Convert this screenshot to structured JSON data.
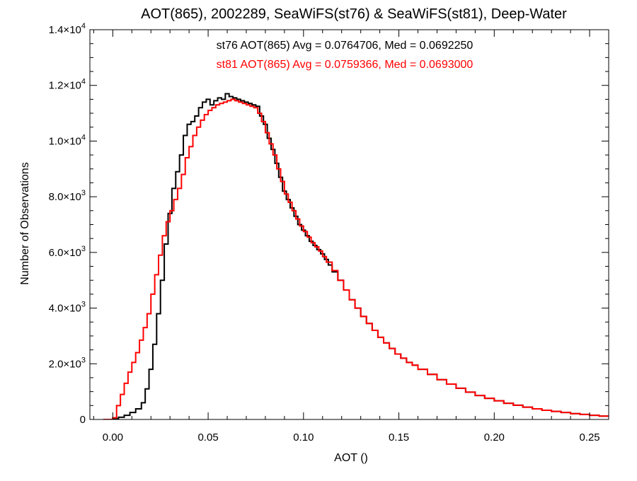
{
  "chart_data": {
    "type": "line",
    "title": "AOT(865), 2002289, SeaWiFS(st76) & SeaWiFS(st81), Deep-Water",
    "xlabel": "AOT ()",
    "ylabel": "Number of Observations",
    "xlim": [
      -0.012,
      0.26
    ],
    "ylim": [
      0,
      14000
    ],
    "x_ticks": [
      0.0,
      0.05,
      0.1,
      0.15,
      0.2,
      0.25
    ],
    "x_tick_labels": [
      "0.00",
      "0.05",
      "0.10",
      "0.15",
      "0.20",
      "0.25"
    ],
    "y_ticks": [
      {
        "value": 0,
        "mantissa": "0",
        "exp": ""
      },
      {
        "value": 2000,
        "mantissa": "2.0×10",
        "exp": "3"
      },
      {
        "value": 4000,
        "mantissa": "4.0×10",
        "exp": "3"
      },
      {
        "value": 6000,
        "mantissa": "6.0×10",
        "exp": "3"
      },
      {
        "value": 8000,
        "mantissa": "8.0×10",
        "exp": "3"
      },
      {
        "value": 10000,
        "mantissa": "1.0×10",
        "exp": "4"
      },
      {
        "value": 12000,
        "mantissa": "1.2×10",
        "exp": "4"
      },
      {
        "value": 14000,
        "mantissa": "1.4×10",
        "exp": "4"
      }
    ],
    "grid": false,
    "step": true,
    "annotations": [
      {
        "text": "st76 AOT(865) Avg = 0.0764706, Med = 0.0692250",
        "color": "#000000"
      },
      {
        "text": "st81 AOT(865) Avg = 0.0759366, Med = 0.0693000",
        "color": "#ff0000"
      }
    ],
    "series": [
      {
        "color": "#000000",
        "points": [
          [
            -0.005,
            0
          ],
          [
            0.0,
            20
          ],
          [
            0.003,
            80
          ],
          [
            0.006,
            150
          ],
          [
            0.009,
            250
          ],
          [
            0.012,
            380
          ],
          [
            0.015,
            600
          ],
          [
            0.017,
            1100
          ],
          [
            0.019,
            1800
          ],
          [
            0.021,
            2700
          ],
          [
            0.023,
            3800
          ],
          [
            0.025,
            5000
          ],
          [
            0.027,
            6300
          ],
          [
            0.029,
            7400
          ],
          [
            0.031,
            8300
          ],
          [
            0.033,
            8900
          ],
          [
            0.035,
            9500
          ],
          [
            0.037,
            10200
          ],
          [
            0.039,
            10600
          ],
          [
            0.041,
            10700
          ],
          [
            0.043,
            10900
          ],
          [
            0.045,
            11200
          ],
          [
            0.047,
            11400
          ],
          [
            0.049,
            11500
          ],
          [
            0.051,
            11300
          ],
          [
            0.053,
            11450
          ],
          [
            0.055,
            11550
          ],
          [
            0.057,
            11500
          ],
          [
            0.059,
            11700
          ],
          [
            0.061,
            11600
          ],
          [
            0.063,
            11550
          ],
          [
            0.065,
            11500
          ],
          [
            0.067,
            11450
          ],
          [
            0.069,
            11400
          ],
          [
            0.071,
            11350
          ],
          [
            0.073,
            11300
          ],
          [
            0.075,
            11250
          ],
          [
            0.077,
            10900
          ],
          [
            0.079,
            10600
          ],
          [
            0.081,
            10100
          ],
          [
            0.083,
            9700
          ],
          [
            0.085,
            9200
          ],
          [
            0.087,
            8700
          ],
          [
            0.089,
            8200
          ],
          [
            0.091,
            7900
          ],
          [
            0.093,
            7600
          ],
          [
            0.095,
            7300
          ],
          [
            0.097,
            7000
          ],
          [
            0.099,
            6800
          ],
          [
            0.101,
            6600
          ],
          [
            0.103,
            6400
          ],
          [
            0.105,
            6250
          ],
          [
            0.107,
            6100
          ],
          [
            0.109,
            5950
          ],
          [
            0.111,
            5750
          ],
          [
            0.113,
            5550
          ],
          [
            0.115,
            5300
          ],
          [
            0.118,
            5000
          ],
          [
            0.121,
            4650
          ],
          [
            0.124,
            4300
          ],
          [
            0.127,
            4000
          ],
          [
            0.13,
            3700
          ],
          [
            0.133,
            3450
          ],
          [
            0.136,
            3200
          ],
          [
            0.139,
            2950
          ],
          [
            0.142,
            2750
          ],
          [
            0.145,
            2550
          ],
          [
            0.148,
            2350
          ],
          [
            0.151,
            2200
          ],
          [
            0.154,
            2050
          ],
          [
            0.157,
            1950
          ],
          [
            0.16,
            1800
          ],
          [
            0.165,
            1620
          ],
          [
            0.17,
            1430
          ],
          [
            0.175,
            1270
          ],
          [
            0.18,
            1120
          ],
          [
            0.185,
            980
          ],
          [
            0.19,
            860
          ],
          [
            0.195,
            760
          ],
          [
            0.2,
            670
          ],
          [
            0.205,
            580
          ],
          [
            0.21,
            510
          ],
          [
            0.215,
            440
          ],
          [
            0.22,
            380
          ],
          [
            0.225,
            330
          ],
          [
            0.23,
            290
          ],
          [
            0.235,
            250
          ],
          [
            0.24,
            210
          ],
          [
            0.245,
            180
          ],
          [
            0.25,
            150
          ],
          [
            0.255,
            120
          ],
          [
            0.26,
            90
          ]
        ]
      },
      {
        "color": "#ff0000",
        "points": [
          [
            -0.005,
            0
          ],
          [
            0.0,
            60
          ],
          [
            0.002,
            500
          ],
          [
            0.004,
            900
          ],
          [
            0.006,
            1300
          ],
          [
            0.008,
            1700
          ],
          [
            0.01,
            2050
          ],
          [
            0.012,
            2400
          ],
          [
            0.014,
            2850
          ],
          [
            0.016,
            3300
          ],
          [
            0.018,
            3800
          ],
          [
            0.02,
            4500
          ],
          [
            0.022,
            5200
          ],
          [
            0.024,
            5900
          ],
          [
            0.026,
            6600
          ],
          [
            0.028,
            7100
          ],
          [
            0.03,
            7500
          ],
          [
            0.032,
            7900
          ],
          [
            0.034,
            8300
          ],
          [
            0.036,
            8800
          ],
          [
            0.038,
            9400
          ],
          [
            0.04,
            9800
          ],
          [
            0.042,
            10200
          ],
          [
            0.044,
            10500
          ],
          [
            0.046,
            10750
          ],
          [
            0.048,
            10950
          ],
          [
            0.05,
            11100
          ],
          [
            0.052,
            11200
          ],
          [
            0.054,
            11300
          ],
          [
            0.056,
            11350
          ],
          [
            0.058,
            11400
          ],
          [
            0.06,
            11450
          ],
          [
            0.062,
            11500
          ],
          [
            0.064,
            11450
          ],
          [
            0.066,
            11400
          ],
          [
            0.068,
            11350
          ],
          [
            0.07,
            11300
          ],
          [
            0.072,
            11250
          ],
          [
            0.074,
            11200
          ],
          [
            0.076,
            11000
          ],
          [
            0.078,
            10700
          ],
          [
            0.08,
            10300
          ],
          [
            0.082,
            9900
          ],
          [
            0.084,
            9500
          ],
          [
            0.086,
            9000
          ],
          [
            0.088,
            8550
          ],
          [
            0.09,
            8100
          ],
          [
            0.092,
            7800
          ],
          [
            0.094,
            7500
          ],
          [
            0.096,
            7200
          ],
          [
            0.098,
            6950
          ],
          [
            0.1,
            6750
          ],
          [
            0.102,
            6550
          ],
          [
            0.104,
            6350
          ],
          [
            0.106,
            6200
          ],
          [
            0.108,
            6050
          ],
          [
            0.11,
            5850
          ],
          [
            0.112,
            5650
          ],
          [
            0.115,
            5350
          ],
          [
            0.118,
            5000
          ],
          [
            0.121,
            4650
          ],
          [
            0.124,
            4300
          ],
          [
            0.127,
            4000
          ],
          [
            0.13,
            3700
          ],
          [
            0.133,
            3450
          ],
          [
            0.136,
            3200
          ],
          [
            0.139,
            2950
          ],
          [
            0.142,
            2750
          ],
          [
            0.145,
            2550
          ],
          [
            0.148,
            2350
          ],
          [
            0.151,
            2200
          ],
          [
            0.154,
            2050
          ],
          [
            0.157,
            1950
          ],
          [
            0.16,
            1800
          ],
          [
            0.165,
            1620
          ],
          [
            0.17,
            1430
          ],
          [
            0.175,
            1270
          ],
          [
            0.18,
            1120
          ],
          [
            0.185,
            980
          ],
          [
            0.19,
            860
          ],
          [
            0.195,
            760
          ],
          [
            0.2,
            670
          ],
          [
            0.205,
            580
          ],
          [
            0.21,
            510
          ],
          [
            0.215,
            440
          ],
          [
            0.22,
            380
          ],
          [
            0.225,
            330
          ],
          [
            0.23,
            290
          ],
          [
            0.235,
            250
          ],
          [
            0.24,
            210
          ],
          [
            0.245,
            180
          ],
          [
            0.25,
            150
          ],
          [
            0.255,
            120
          ],
          [
            0.26,
            90
          ]
        ]
      }
    ]
  }
}
